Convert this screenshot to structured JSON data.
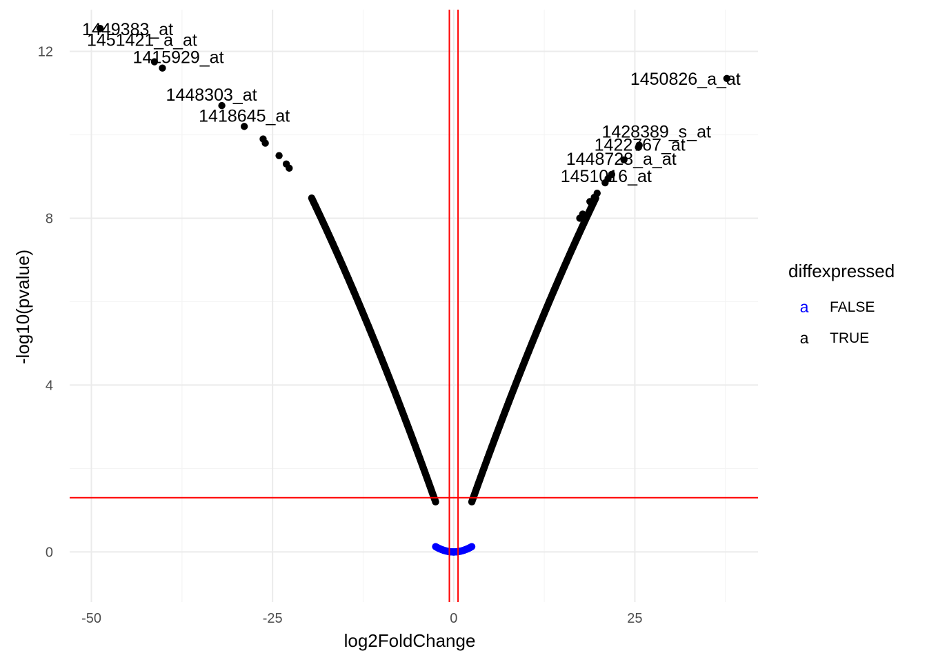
{
  "chart_data": {
    "type": "scatter",
    "title": "",
    "xlabel": "log2FoldChange",
    "ylabel": "-log10(pvalue)",
    "xlim": [
      -53,
      42
    ],
    "ylim": [
      -1.2,
      13
    ],
    "x_ticks": [
      -50,
      -25,
      0,
      25
    ],
    "x_tick_labels": [
      "-50",
      "-25",
      "0",
      "25"
    ],
    "y_ticks": [
      0,
      4,
      8,
      12
    ],
    "y_tick_labels": [
      "0",
      "4",
      "8",
      "12"
    ],
    "grid": true,
    "thresholds": {
      "vertical_lines": [
        -0.6,
        0.6
      ],
      "horizontal_line": 1.3,
      "color": "#ff0000"
    },
    "legend": {
      "title": "diffexpressed",
      "position": "right",
      "key_glyph": "a",
      "entries": [
        {
          "label": "FALSE",
          "color": "#0000ff"
        },
        {
          "label": "TRUE",
          "color": "#000000"
        }
      ]
    },
    "series": [
      {
        "name": "FALSE",
        "color": "#0000ff",
        "curve": "y = 0.0215 * |x|^2 * (1 - |x|/50), |x| <= 2.5"
      },
      {
        "name": "TRUE",
        "color": "#000000",
        "curve": "y = 0.0215 * |x|^2 * (1 - |x|/50) to 1.2 + 0.488*(|x|-2.5) - 0.00363*(|x|-2.5)^2, 2.5 < |x| <= 19.5",
        "points": [
          {
            "x": -48.8,
            "y": 12.55,
            "label": "1449383_at"
          },
          {
            "x": -41.3,
            "y": 11.75,
            "label": "1451421_a_at"
          },
          {
            "x": -40.2,
            "y": 11.6,
            "label": "1415929_at"
          },
          {
            "x": -32.0,
            "y": 10.7,
            "label": "1448303_at"
          },
          {
            "x": -28.9,
            "y": 10.2,
            "label": "1418645_at"
          },
          {
            "x": -26.3,
            "y": 9.9
          },
          {
            "x": -26.0,
            "y": 9.8
          },
          {
            "x": -24.1,
            "y": 9.5
          },
          {
            "x": -23.1,
            "y": 9.3
          },
          {
            "x": -22.7,
            "y": 9.2
          },
          {
            "x": 37.7,
            "y": 11.35,
            "label": "1450826_a_at"
          },
          {
            "x": 25.6,
            "y": 9.75,
            "label": "1428389_s_at"
          },
          {
            "x": 25.5,
            "y": 9.7,
            "label": "1422767_at"
          },
          {
            "x": 23.5,
            "y": 9.4,
            "label": "1448728_a_at"
          },
          {
            "x": 21.8,
            "y": 9.05,
            "label": "1451016_at"
          },
          {
            "x": 20.9,
            "y": 8.85
          },
          {
            "x": 21.3,
            "y": 8.95
          },
          {
            "x": 19.8,
            "y": 8.6
          },
          {
            "x": 19.4,
            "y": 8.5
          },
          {
            "x": 18.8,
            "y": 8.4
          },
          {
            "x": 17.8,
            "y": 8.1
          },
          {
            "x": 17.4,
            "y": 8.0
          }
        ]
      }
    ]
  }
}
